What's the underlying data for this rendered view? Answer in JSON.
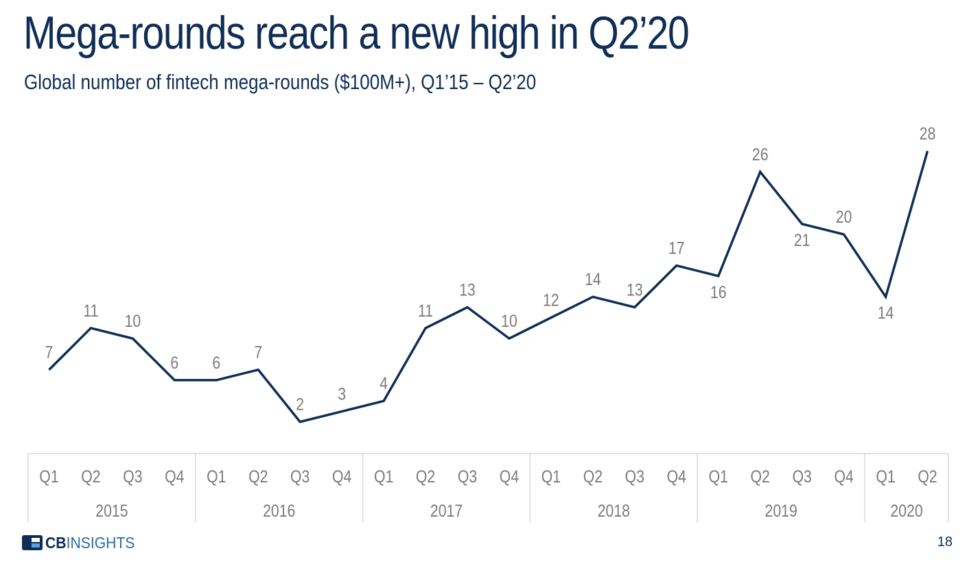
{
  "slide": {
    "title": "Mega-rounds reach a new high in Q2’20",
    "subtitle": "Global number of fintech mega-rounds ($100M+), Q1’15 – Q2’20",
    "brand_bold": "CB",
    "brand_light": "INSIGHTS",
    "page_number": "18"
  },
  "chart_data": {
    "type": "line",
    "title": "Mega-rounds reach a new high in Q2’20",
    "subtitle": "Global number of fintech mega-rounds ($100M+), Q1’15 – Q2’20",
    "categories": [
      "Q1",
      "Q2",
      "Q3",
      "Q4",
      "Q1",
      "Q2",
      "Q3",
      "Q4",
      "Q1",
      "Q2",
      "Q3",
      "Q4",
      "Q1",
      "Q2",
      "Q3",
      "Q4",
      "Q1",
      "Q2",
      "Q3",
      "Q4",
      "Q1",
      "Q2"
    ],
    "groups": [
      {
        "label": "2015",
        "count": 4
      },
      {
        "label": "2016",
        "count": 4
      },
      {
        "label": "2017",
        "count": 4
      },
      {
        "label": "2018",
        "count": 4
      },
      {
        "label": "2019",
        "count": 4
      },
      {
        "label": "2020",
        "count": 2
      }
    ],
    "series": [
      {
        "values": [
          7,
          11,
          10,
          6,
          6,
          7,
          2,
          3,
          4,
          11,
          13,
          10,
          12,
          14,
          13,
          17,
          16,
          26,
          21,
          20,
          14,
          28
        ],
        "color": "#0f2d55"
      }
    ],
    "label_position": [
      "above",
      "above",
      "above",
      "above",
      "above",
      "above",
      "above",
      "above",
      "above",
      "above",
      "above",
      "above",
      "above",
      "above",
      "above",
      "above",
      "below",
      "above",
      "below",
      "above",
      "below",
      "above"
    ],
    "xlabel": "",
    "ylabel": "",
    "ylim": [
      0,
      28
    ],
    "grid": false,
    "legend": "none",
    "label_color": "#7a7a7a",
    "axis_color": "#d9d9d9"
  }
}
